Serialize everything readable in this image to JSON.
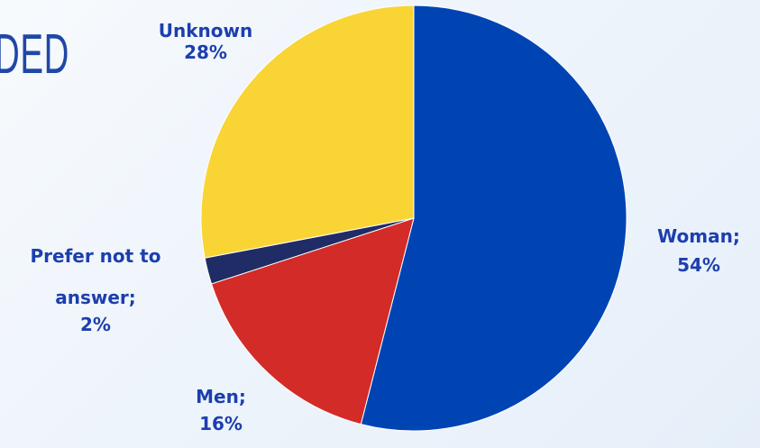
{
  "heading_fragment": "DED",
  "chart_data": {
    "type": "pie",
    "slices": [
      {
        "label": "Woman",
        "value": 54,
        "color": "#0044b4"
      },
      {
        "label": "Men",
        "value": 16,
        "color": "#d32b27"
      },
      {
        "label": "Prefer not to answer",
        "value": 2,
        "color": "#1f2c66"
      },
      {
        "label": "Unknown",
        "value": 28,
        "color": "#f9d435"
      }
    ],
    "start_angle_deg": 0,
    "direction": "clockwise",
    "labels": {
      "woman": {
        "name": "Woman;",
        "pct": "54%"
      },
      "men": {
        "name": "Men;",
        "pct": "16%"
      },
      "prefer": {
        "line1": "Prefer not to",
        "line2": "answer;",
        "pct": "2%"
      },
      "unknown": {
        "name": "Unknown",
        "pct": "28%"
      }
    }
  }
}
